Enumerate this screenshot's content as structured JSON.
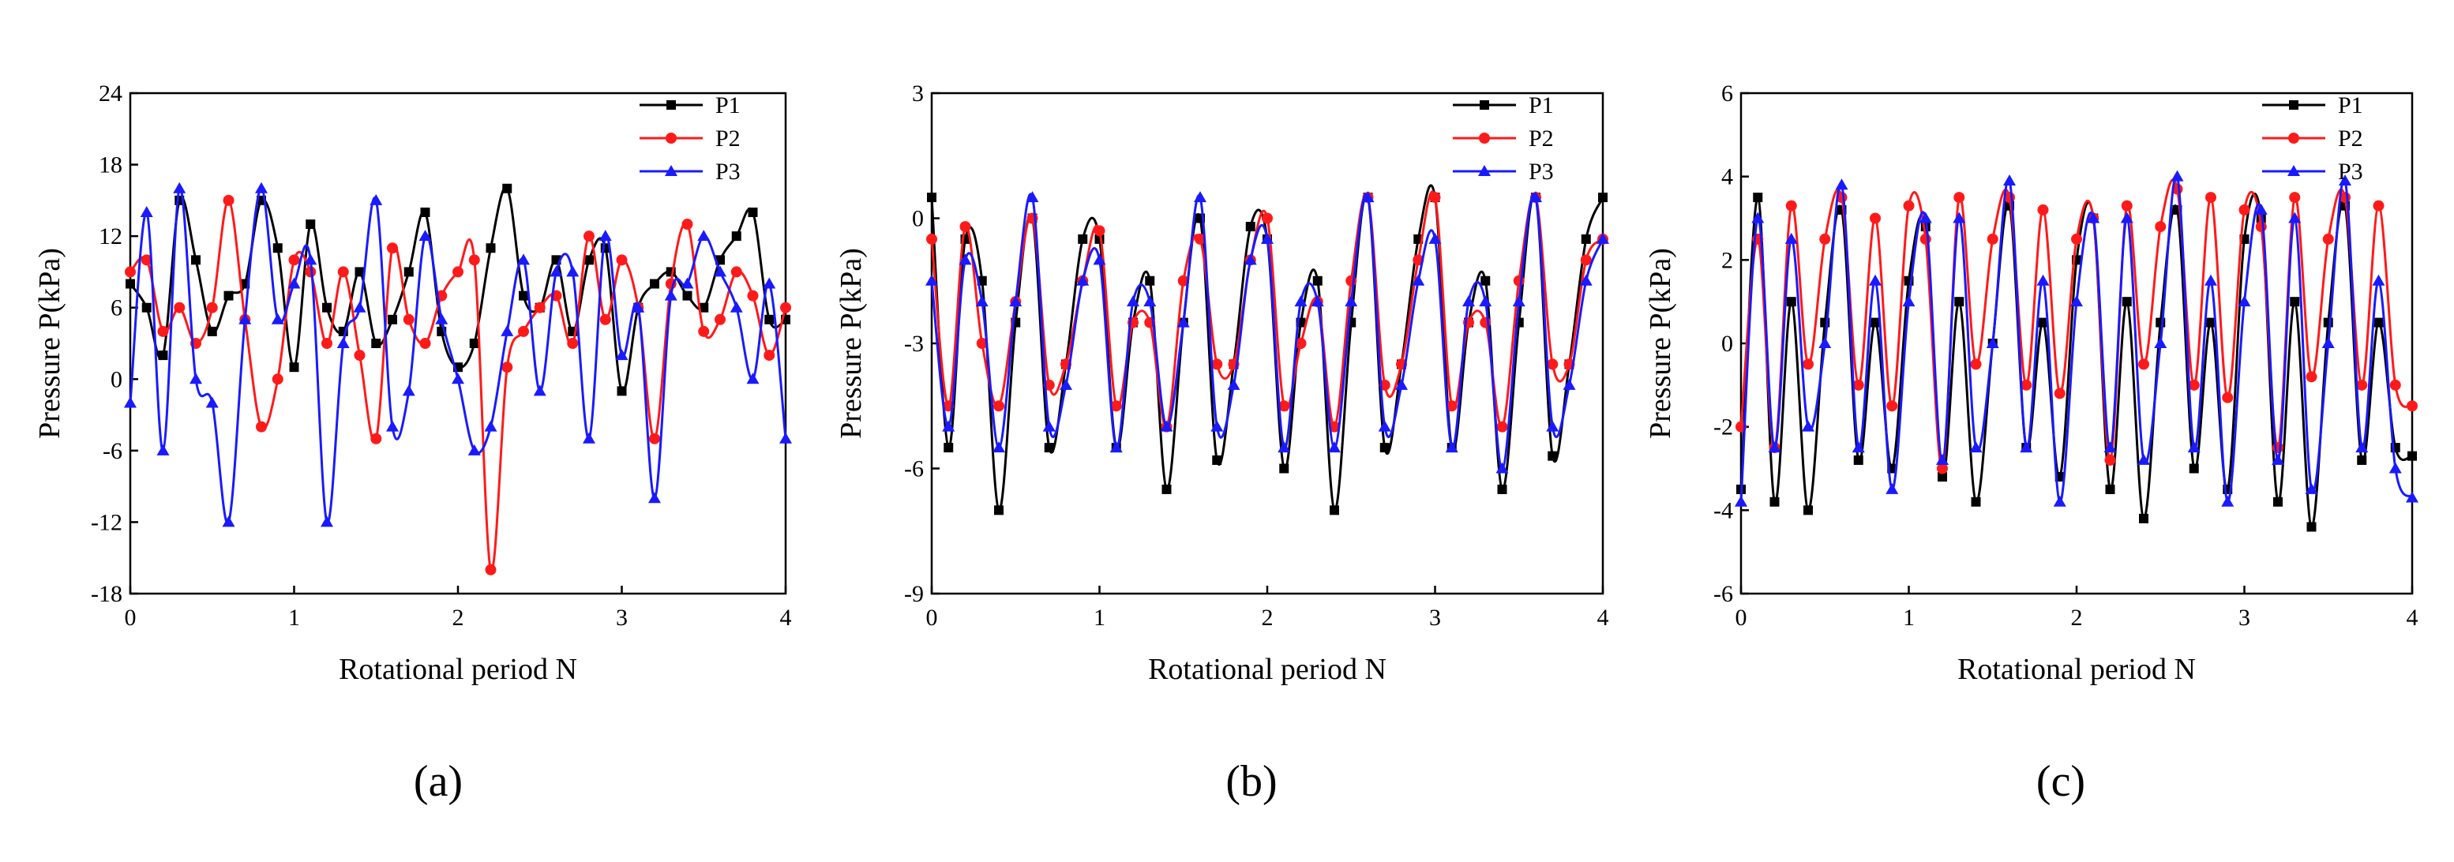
{
  "figure": {
    "panel_labels": [
      "(a)",
      "(b)",
      "(c)"
    ]
  },
  "colors": {
    "P1": "#000000",
    "P2": "#ff1a1a",
    "P3": "#1a1aff"
  },
  "chart_data": [
    {
      "type": "line",
      "panel": "(a)",
      "title": "",
      "xlabel": "Rotational period N",
      "ylabel": "Pressure P(kPa)",
      "xlim": [
        0,
        4
      ],
      "ylim": [
        -18,
        24
      ],
      "xticks": [
        0,
        1,
        2,
        3,
        4
      ],
      "yticks": [
        -18,
        -12,
        -6,
        0,
        6,
        12,
        18,
        24
      ],
      "ytick_labels": [
        "-18",
        "-12",
        "-6",
        "0",
        "6",
        "12",
        "18",
        "24"
      ],
      "legend": [
        "P1",
        "P2",
        "P3"
      ],
      "legend_position": "top-right",
      "series": [
        {
          "name": "P1",
          "marker": "square",
          "x": [
            0,
            0.1,
            0.2,
            0.3,
            0.4,
            0.5,
            0.6,
            0.7,
            0.8,
            0.9,
            1.0,
            1.1,
            1.2,
            1.3,
            1.4,
            1.5,
            1.6,
            1.7,
            1.8,
            1.9,
            2.0,
            2.1,
            2.2,
            2.3,
            2.4,
            2.5,
            2.6,
            2.7,
            2.8,
            2.9,
            3.0,
            3.1,
            3.2,
            3.3,
            3.4,
            3.5,
            3.6,
            3.7,
            3.8,
            3.9,
            4.0
          ],
          "values": [
            8,
            6,
            2,
            15,
            10,
            4,
            7,
            8,
            15,
            11,
            1,
            13,
            6,
            4,
            9,
            3,
            5,
            9,
            14,
            4,
            1,
            3,
            11,
            16,
            7,
            6,
            10,
            4,
            10,
            11,
            -1,
            6,
            8,
            9,
            7,
            6,
            10,
            12,
            14,
            5,
            5
          ]
        },
        {
          "name": "P2",
          "marker": "circle",
          "x": [
            0,
            0.1,
            0.2,
            0.3,
            0.4,
            0.5,
            0.6,
            0.7,
            0.8,
            0.9,
            1.0,
            1.1,
            1.2,
            1.3,
            1.4,
            1.5,
            1.6,
            1.7,
            1.8,
            1.9,
            2.0,
            2.1,
            2.2,
            2.3,
            2.4,
            2.5,
            2.6,
            2.7,
            2.8,
            2.9,
            3.0,
            3.1,
            3.2,
            3.3,
            3.4,
            3.5,
            3.6,
            3.7,
            3.8,
            3.9,
            4.0
          ],
          "values": [
            9,
            10,
            4,
            6,
            3,
            6,
            15,
            5,
            -4,
            0,
            10,
            9,
            3,
            9,
            2,
            -5,
            11,
            5,
            3,
            7,
            9,
            10,
            -16,
            1,
            4,
            6,
            7,
            3,
            12,
            5,
            10,
            6,
            -5,
            8,
            13,
            4,
            5,
            9,
            7,
            2,
            6
          ]
        },
        {
          "name": "P3",
          "marker": "triangle",
          "x": [
            0,
            0.1,
            0.2,
            0.3,
            0.4,
            0.5,
            0.6,
            0.7,
            0.8,
            0.9,
            1.0,
            1.1,
            1.2,
            1.3,
            1.4,
            1.5,
            1.6,
            1.7,
            1.8,
            1.9,
            2.0,
            2.1,
            2.2,
            2.3,
            2.4,
            2.5,
            2.6,
            2.7,
            2.8,
            2.9,
            3.0,
            3.1,
            3.2,
            3.3,
            3.4,
            3.5,
            3.6,
            3.7,
            3.8,
            3.9,
            4.0
          ],
          "values": [
            -2,
            14,
            -6,
            16,
            0,
            -2,
            -12,
            5,
            16,
            5,
            8,
            10,
            -12,
            3,
            6,
            15,
            -4,
            -1,
            12,
            5,
            0,
            -6,
            -4,
            4,
            10,
            -1,
            9,
            9,
            -5,
            12,
            2,
            6,
            -10,
            7,
            8,
            12,
            9,
            6,
            0,
            8,
            -5
          ]
        }
      ]
    },
    {
      "type": "line",
      "panel": "(b)",
      "title": "",
      "xlabel": "Rotational period N",
      "ylabel": "Pressure P(kPa)",
      "xlim": [
        0,
        4
      ],
      "ylim": [
        -9,
        3
      ],
      "xticks": [
        0,
        1,
        2,
        3,
        4
      ],
      "yticks": [
        -9,
        -6,
        -3,
        0,
        3
      ],
      "ytick_labels": [
        "-9",
        "-6",
        "-3",
        "0",
        "3"
      ],
      "legend": [
        "P1",
        "P2",
        "P3"
      ],
      "legend_position": "top-right",
      "series": [
        {
          "name": "P1",
          "marker": "square",
          "x": [
            0,
            0.1,
            0.2,
            0.3,
            0.4,
            0.5,
            0.6,
            0.7,
            0.8,
            0.9,
            1.0,
            1.1,
            1.2,
            1.3,
            1.4,
            1.5,
            1.6,
            1.7,
            1.8,
            1.9,
            2.0,
            2.1,
            2.2,
            2.3,
            2.4,
            2.5,
            2.6,
            2.7,
            2.8,
            2.9,
            3.0,
            3.1,
            3.2,
            3.3,
            3.4,
            3.5,
            3.6,
            3.7,
            3.8,
            3.9,
            4.0
          ],
          "values": [
            0.5,
            -5.5,
            -0.5,
            -1.5,
            -7,
            -2.5,
            0,
            -5.5,
            -3.5,
            -0.5,
            -0.5,
            -5.5,
            -2.5,
            -1.5,
            -6.5,
            -2.5,
            0,
            -5.8,
            -3.5,
            -0.2,
            -0.5,
            -6,
            -2.5,
            -1.5,
            -7,
            -2.5,
            0.5,
            -5.5,
            -3.5,
            -0.5,
            0.5,
            -5.5,
            -2.5,
            -1.5,
            -6.5,
            -2.5,
            0.5,
            -5.7,
            -3.5,
            -0.5,
            0.5
          ]
        },
        {
          "name": "P2",
          "marker": "circle",
          "x": [
            0,
            0.1,
            0.2,
            0.3,
            0.4,
            0.5,
            0.6,
            0.7,
            0.8,
            0.9,
            1.0,
            1.1,
            1.2,
            1.3,
            1.4,
            1.5,
            1.6,
            1.7,
            1.8,
            1.9,
            2.0,
            2.1,
            2.2,
            2.3,
            2.4,
            2.5,
            2.6,
            2.7,
            2.8,
            2.9,
            3.0,
            3.1,
            3.2,
            3.3,
            3.4,
            3.5,
            3.6,
            3.7,
            3.8,
            3.9,
            4.0
          ],
          "values": [
            -0.5,
            -4.5,
            -0.2,
            -3,
            -4.5,
            -2,
            0,
            -4,
            -3.5,
            -1.5,
            -0.3,
            -4.5,
            -2.5,
            -2.5,
            -5,
            -1.5,
            -0.5,
            -3.5,
            -3.5,
            -1,
            0,
            -4.5,
            -3,
            -2,
            -5,
            -1.5,
            0.5,
            -4,
            -3.5,
            -1,
            0.5,
            -4.5,
            -2.5,
            -2.5,
            -5,
            -1.5,
            0.5,
            -3.5,
            -3.5,
            -1,
            -0.5
          ]
        },
        {
          "name": "P3",
          "marker": "triangle",
          "x": [
            0,
            0.1,
            0.2,
            0.3,
            0.4,
            0.5,
            0.6,
            0.7,
            0.8,
            0.9,
            1.0,
            1.1,
            1.2,
            1.3,
            1.4,
            1.5,
            1.6,
            1.7,
            1.8,
            1.9,
            2.0,
            2.1,
            2.2,
            2.3,
            2.4,
            2.5,
            2.6,
            2.7,
            2.8,
            2.9,
            3.0,
            3.1,
            3.2,
            3.3,
            3.4,
            3.5,
            3.6,
            3.7,
            3.8,
            3.9,
            4.0
          ],
          "values": [
            -1.5,
            -5,
            -1,
            -2,
            -5.5,
            -2,
            0.5,
            -5,
            -4,
            -1.5,
            -1,
            -5.5,
            -2,
            -2,
            -5,
            -2.5,
            0.5,
            -5,
            -4,
            -1,
            -0.5,
            -5.5,
            -2,
            -2,
            -5.5,
            -2,
            0.5,
            -5,
            -4,
            -1.5,
            -0.5,
            -5.5,
            -2,
            -2,
            -6,
            -2,
            0.5,
            -5,
            -4,
            -1.5,
            -0.5
          ]
        }
      ]
    },
    {
      "type": "line",
      "panel": "(c)",
      "title": "",
      "xlabel": "Rotational period N",
      "ylabel": "Pressure P(kPa)",
      "xlim": [
        0,
        4
      ],
      "ylim": [
        -6,
        6
      ],
      "xticks": [
        0,
        1,
        2,
        3,
        4
      ],
      "yticks": [
        -6,
        -4,
        -2,
        0,
        2,
        4,
        6
      ],
      "ytick_labels": [
        "-6",
        "-4",
        "-2",
        "0",
        "2",
        "4",
        "6"
      ],
      "legend": [
        "P1",
        "P2",
        "P3"
      ],
      "legend_position": "top-right",
      "series": [
        {
          "name": "P1",
          "marker": "square",
          "x": [
            0,
            0.1,
            0.2,
            0.3,
            0.4,
            0.5,
            0.6,
            0.7,
            0.8,
            0.9,
            1.0,
            1.1,
            1.2,
            1.3,
            1.4,
            1.5,
            1.6,
            1.7,
            1.8,
            1.9,
            2.0,
            2.1,
            2.2,
            2.3,
            2.4,
            2.5,
            2.6,
            2.7,
            2.8,
            2.9,
            3.0,
            3.1,
            3.2,
            3.3,
            3.4,
            3.5,
            3.6,
            3.7,
            3.8,
            3.9,
            4.0
          ],
          "values": [
            -3.5,
            3.5,
            -3.8,
            1,
            -4,
            0.5,
            3.2,
            -2.8,
            0.5,
            -3,
            1.5,
            2.8,
            -3.2,
            1,
            -3.8,
            0,
            3.3,
            -2.5,
            0.5,
            -3.2,
            2,
            3,
            -3.5,
            1,
            -4.2,
            0.5,
            3.2,
            -3,
            0.5,
            -3.5,
            2.5,
            3,
            -3.8,
            1,
            -4.4,
            0.5,
            3.3,
            -2.8,
            0.5,
            -2.5,
            -2.7
          ]
        },
        {
          "name": "P2",
          "marker": "circle",
          "x": [
            0,
            0.1,
            0.2,
            0.3,
            0.4,
            0.5,
            0.6,
            0.7,
            0.8,
            0.9,
            1.0,
            1.1,
            1.2,
            1.3,
            1.4,
            1.5,
            1.6,
            1.7,
            1.8,
            1.9,
            2.0,
            2.1,
            2.2,
            2.3,
            2.4,
            2.5,
            2.6,
            2.7,
            2.8,
            2.9,
            3.0,
            3.1,
            3.2,
            3.3,
            3.4,
            3.5,
            3.6,
            3.7,
            3.8,
            3.9,
            4.0
          ],
          "values": [
            -2,
            2.5,
            -2.5,
            3.3,
            -0.5,
            2.5,
            3.5,
            -1,
            3,
            -1.5,
            3.3,
            2.5,
            -3,
            3.5,
            -0.5,
            2.5,
            3.5,
            -1,
            3.2,
            -1.2,
            2.5,
            3,
            -2.8,
            3.3,
            -0.5,
            2.8,
            3.7,
            -1,
            3.5,
            -1.3,
            3.2,
            2.8,
            -2.5,
            3.5,
            -0.8,
            2.5,
            3.5,
            -1,
            3.3,
            -1,
            -1.5
          ]
        },
        {
          "name": "P3",
          "marker": "triangle",
          "x": [
            0,
            0.1,
            0.2,
            0.3,
            0.4,
            0.5,
            0.6,
            0.7,
            0.8,
            0.9,
            1.0,
            1.1,
            1.2,
            1.3,
            1.4,
            1.5,
            1.6,
            1.7,
            1.8,
            1.9,
            2.0,
            2.1,
            2.2,
            2.3,
            2.4,
            2.5,
            2.6,
            2.7,
            2.8,
            2.9,
            3.0,
            3.1,
            3.2,
            3.3,
            3.4,
            3.5,
            3.6,
            3.7,
            3.8,
            3.9,
            4.0
          ],
          "values": [
            -3.8,
            3,
            -2.5,
            2.5,
            -2,
            0,
            3.8,
            -2.5,
            1.5,
            -3.5,
            1,
            3,
            -2.8,
            3,
            -2.5,
            0,
            3.9,
            -2.5,
            1.5,
            -3.8,
            1,
            3,
            -2.5,
            3,
            -2.8,
            0,
            4,
            -2.5,
            1.5,
            -3.8,
            1,
            3.2,
            -2.8,
            3,
            -3.5,
            0,
            3.9,
            -2.5,
            1.5,
            -3,
            -3.7
          ]
        }
      ]
    }
  ]
}
